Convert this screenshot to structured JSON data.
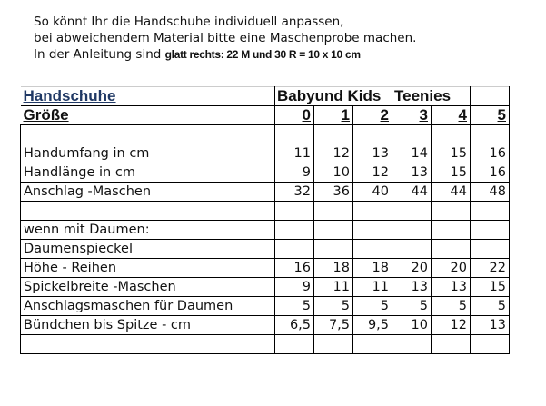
{
  "intro": {
    "line1": "So könnt Ihr die Handschuhe individuell anpassen,",
    "line2": "bei abweichendem Material bitte eine Maschenprobe machen.",
    "line3_prefix": "In der Anleitung sind ",
    "line3_bold": "glatt rechts: 22 M und 30 R = 10 x 10 cm"
  },
  "table": {
    "title": "Handschuhe",
    "groups": [
      "Babyund Kids",
      "Teenies"
    ],
    "size_label": "Größe",
    "sizes": [
      "0",
      "1",
      "2",
      "3",
      "4",
      "5"
    ],
    "rows": [
      {
        "label": "",
        "values": [
          "",
          "",
          "",
          "",
          "",
          ""
        ]
      },
      {
        "label": "Handumfang in cm",
        "values": [
          "11",
          "12",
          "13",
          "14",
          "15",
          "16"
        ]
      },
      {
        "label": "Handlänge in cm",
        "values": [
          "9",
          "10",
          "12",
          "13",
          "15",
          "16"
        ]
      },
      {
        "label": "Anschlag  -Maschen",
        "values": [
          "32",
          "36",
          "40",
          "44",
          "44",
          "48"
        ]
      },
      {
        "label": "",
        "values": [
          "",
          "",
          "",
          "",
          "",
          ""
        ]
      },
      {
        "label": "wenn mit Daumen:",
        "values": [
          "",
          "",
          "",
          "",
          "",
          ""
        ]
      },
      {
        "label": "Daumenspieckel",
        "values": [
          "",
          "",
          "",
          "",
          "",
          ""
        ]
      },
      {
        "label": "Höhe - Reihen",
        "values": [
          "16",
          "18",
          "18",
          "20",
          "20",
          "22"
        ]
      },
      {
        "label": "Spickelbreite -Maschen",
        "values": [
          "9",
          "11",
          "11",
          "13",
          "13",
          "15"
        ]
      },
      {
        "label": "Anschlagsmaschen für Daumen",
        "values": [
          "5",
          "5",
          "5",
          "5",
          "5",
          "5"
        ]
      },
      {
        "label": "Bündchen bis Spitze - cm",
        "values": [
          "6,5",
          "7,5",
          "9,5",
          "10",
          "12",
          "13"
        ]
      },
      {
        "label": "",
        "values": [
          "",
          "",
          "",
          "",
          "",
          ""
        ]
      }
    ]
  }
}
